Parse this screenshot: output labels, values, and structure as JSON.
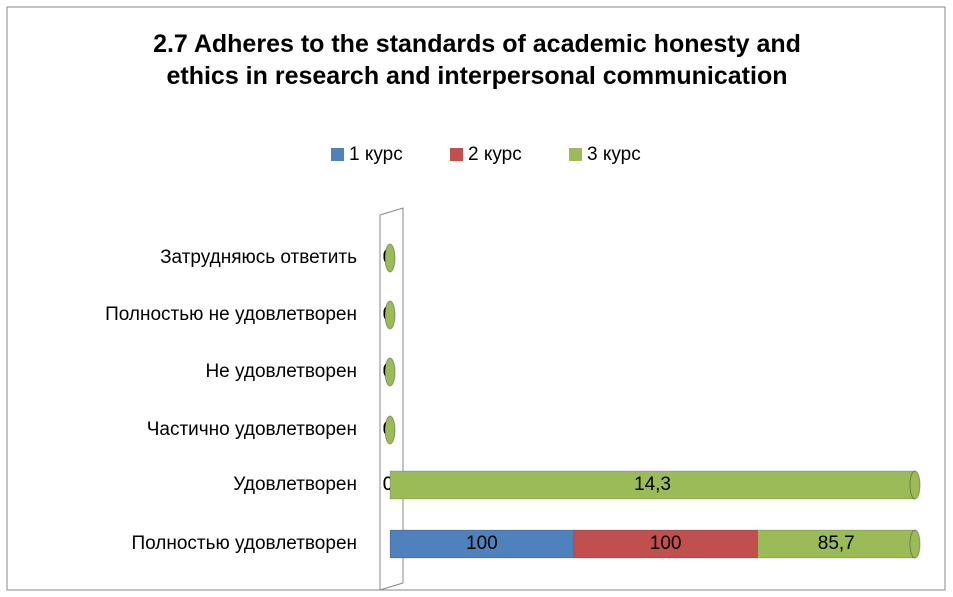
{
  "chart_data": {
    "type": "bar",
    "orientation": "horizontal",
    "stacking": "percent",
    "title": "2.7 Adheres to the standards of academic honesty and ethics in research and interpersonal communication",
    "categories": [
      "Затрудняюсь ответить",
      "Полностью не удовлетворен",
      "Не удовлетворен",
      "Частично удовлетворен",
      "Удовлетворен",
      "Полностью удовлетворен"
    ],
    "series": [
      {
        "name": "1 курс",
        "color": "#4f81bd",
        "values": [
          0,
          0,
          0,
          0,
          0,
          100
        ]
      },
      {
        "name": "2 курс",
        "color": "#c0504d",
        "values": [
          0,
          0,
          0,
          0,
          0,
          100
        ]
      },
      {
        "name": "3 курс",
        "color": "#9bbb59",
        "values": [
          0,
          0,
          0,
          0,
          14.3,
          85.7
        ],
        "value_labels": [
          "0",
          "0",
          "0",
          "0",
          "14,3",
          "85,7"
        ]
      }
    ],
    "legend": "top"
  }
}
